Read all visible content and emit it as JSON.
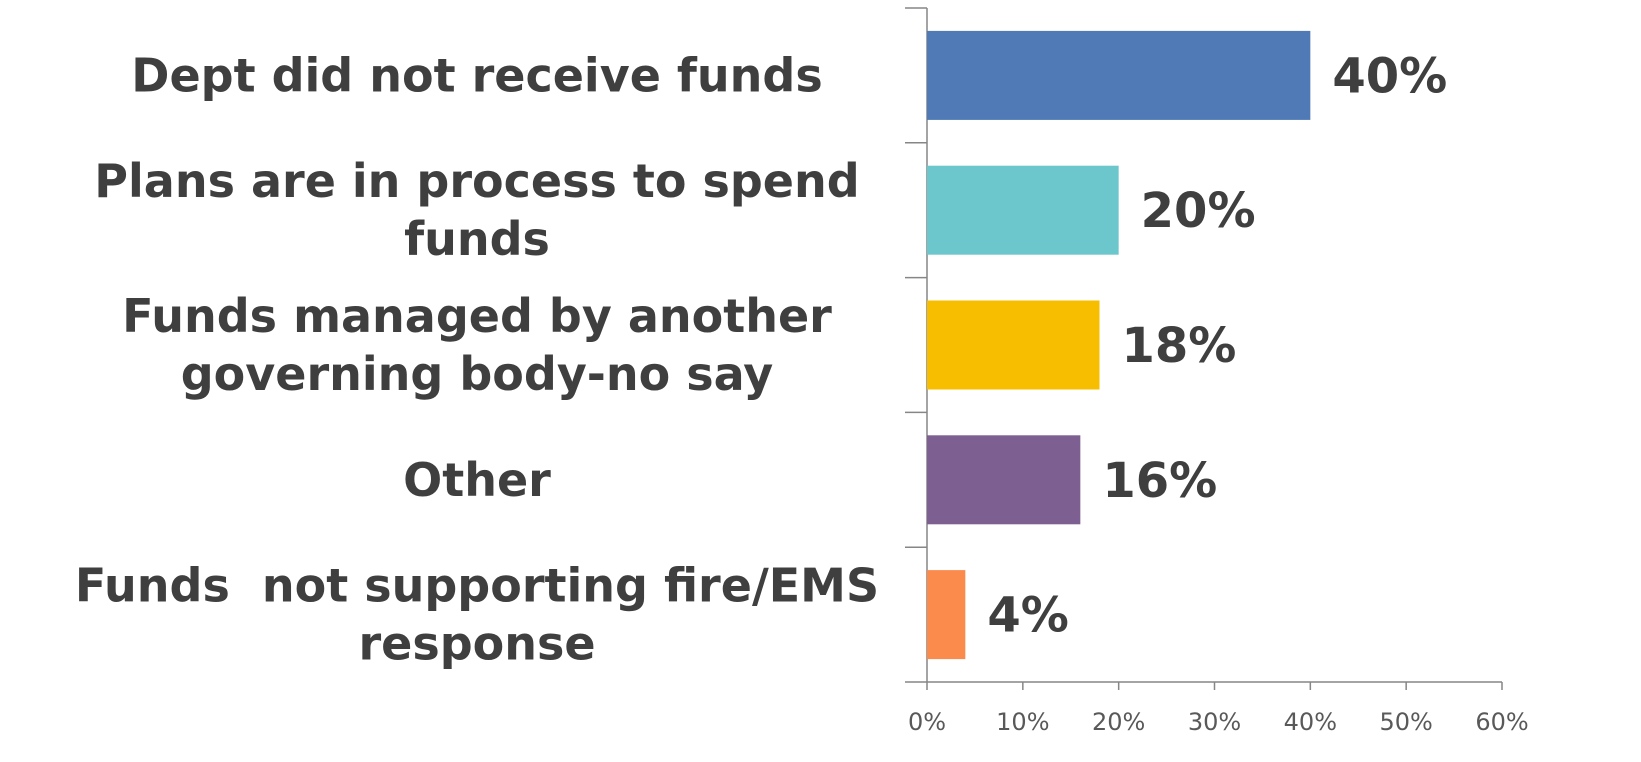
{
  "chart_data": {
    "type": "bar",
    "orientation": "horizontal",
    "categories": [
      "Dept did not receive funds",
      "Plans are in process to spend funds",
      "Funds managed by another governing body-no say",
      "Other",
      "Funds  not supporting fire/EMS response"
    ],
    "category_lines": [
      [
        "Dept did not receive funds"
      ],
      [
        "Plans are in process to spend",
        "funds"
      ],
      [
        "Funds managed by another",
        "governing body-no say"
      ],
      [
        "Other"
      ],
      [
        "Funds  not supporting fire/EMS",
        "response"
      ]
    ],
    "values": [
      40,
      20,
      18,
      16,
      4
    ],
    "value_labels": [
      "40%",
      "20%",
      "18%",
      "16%",
      "4%"
    ],
    "colors": [
      "#4f7ab5",
      "#6cc7cc",
      "#f7be00",
      "#7e5f91",
      "#fb8a4d"
    ],
    "xlim": [
      0,
      60
    ],
    "xticks": [
      0,
      10,
      20,
      30,
      40,
      50,
      60
    ],
    "xtick_labels": [
      "0%",
      "10%",
      "20%",
      "30%",
      "40%",
      "50%",
      "60%"
    ],
    "title": "",
    "xlabel": "",
    "ylabel": "",
    "grid": false,
    "legend": "none"
  }
}
